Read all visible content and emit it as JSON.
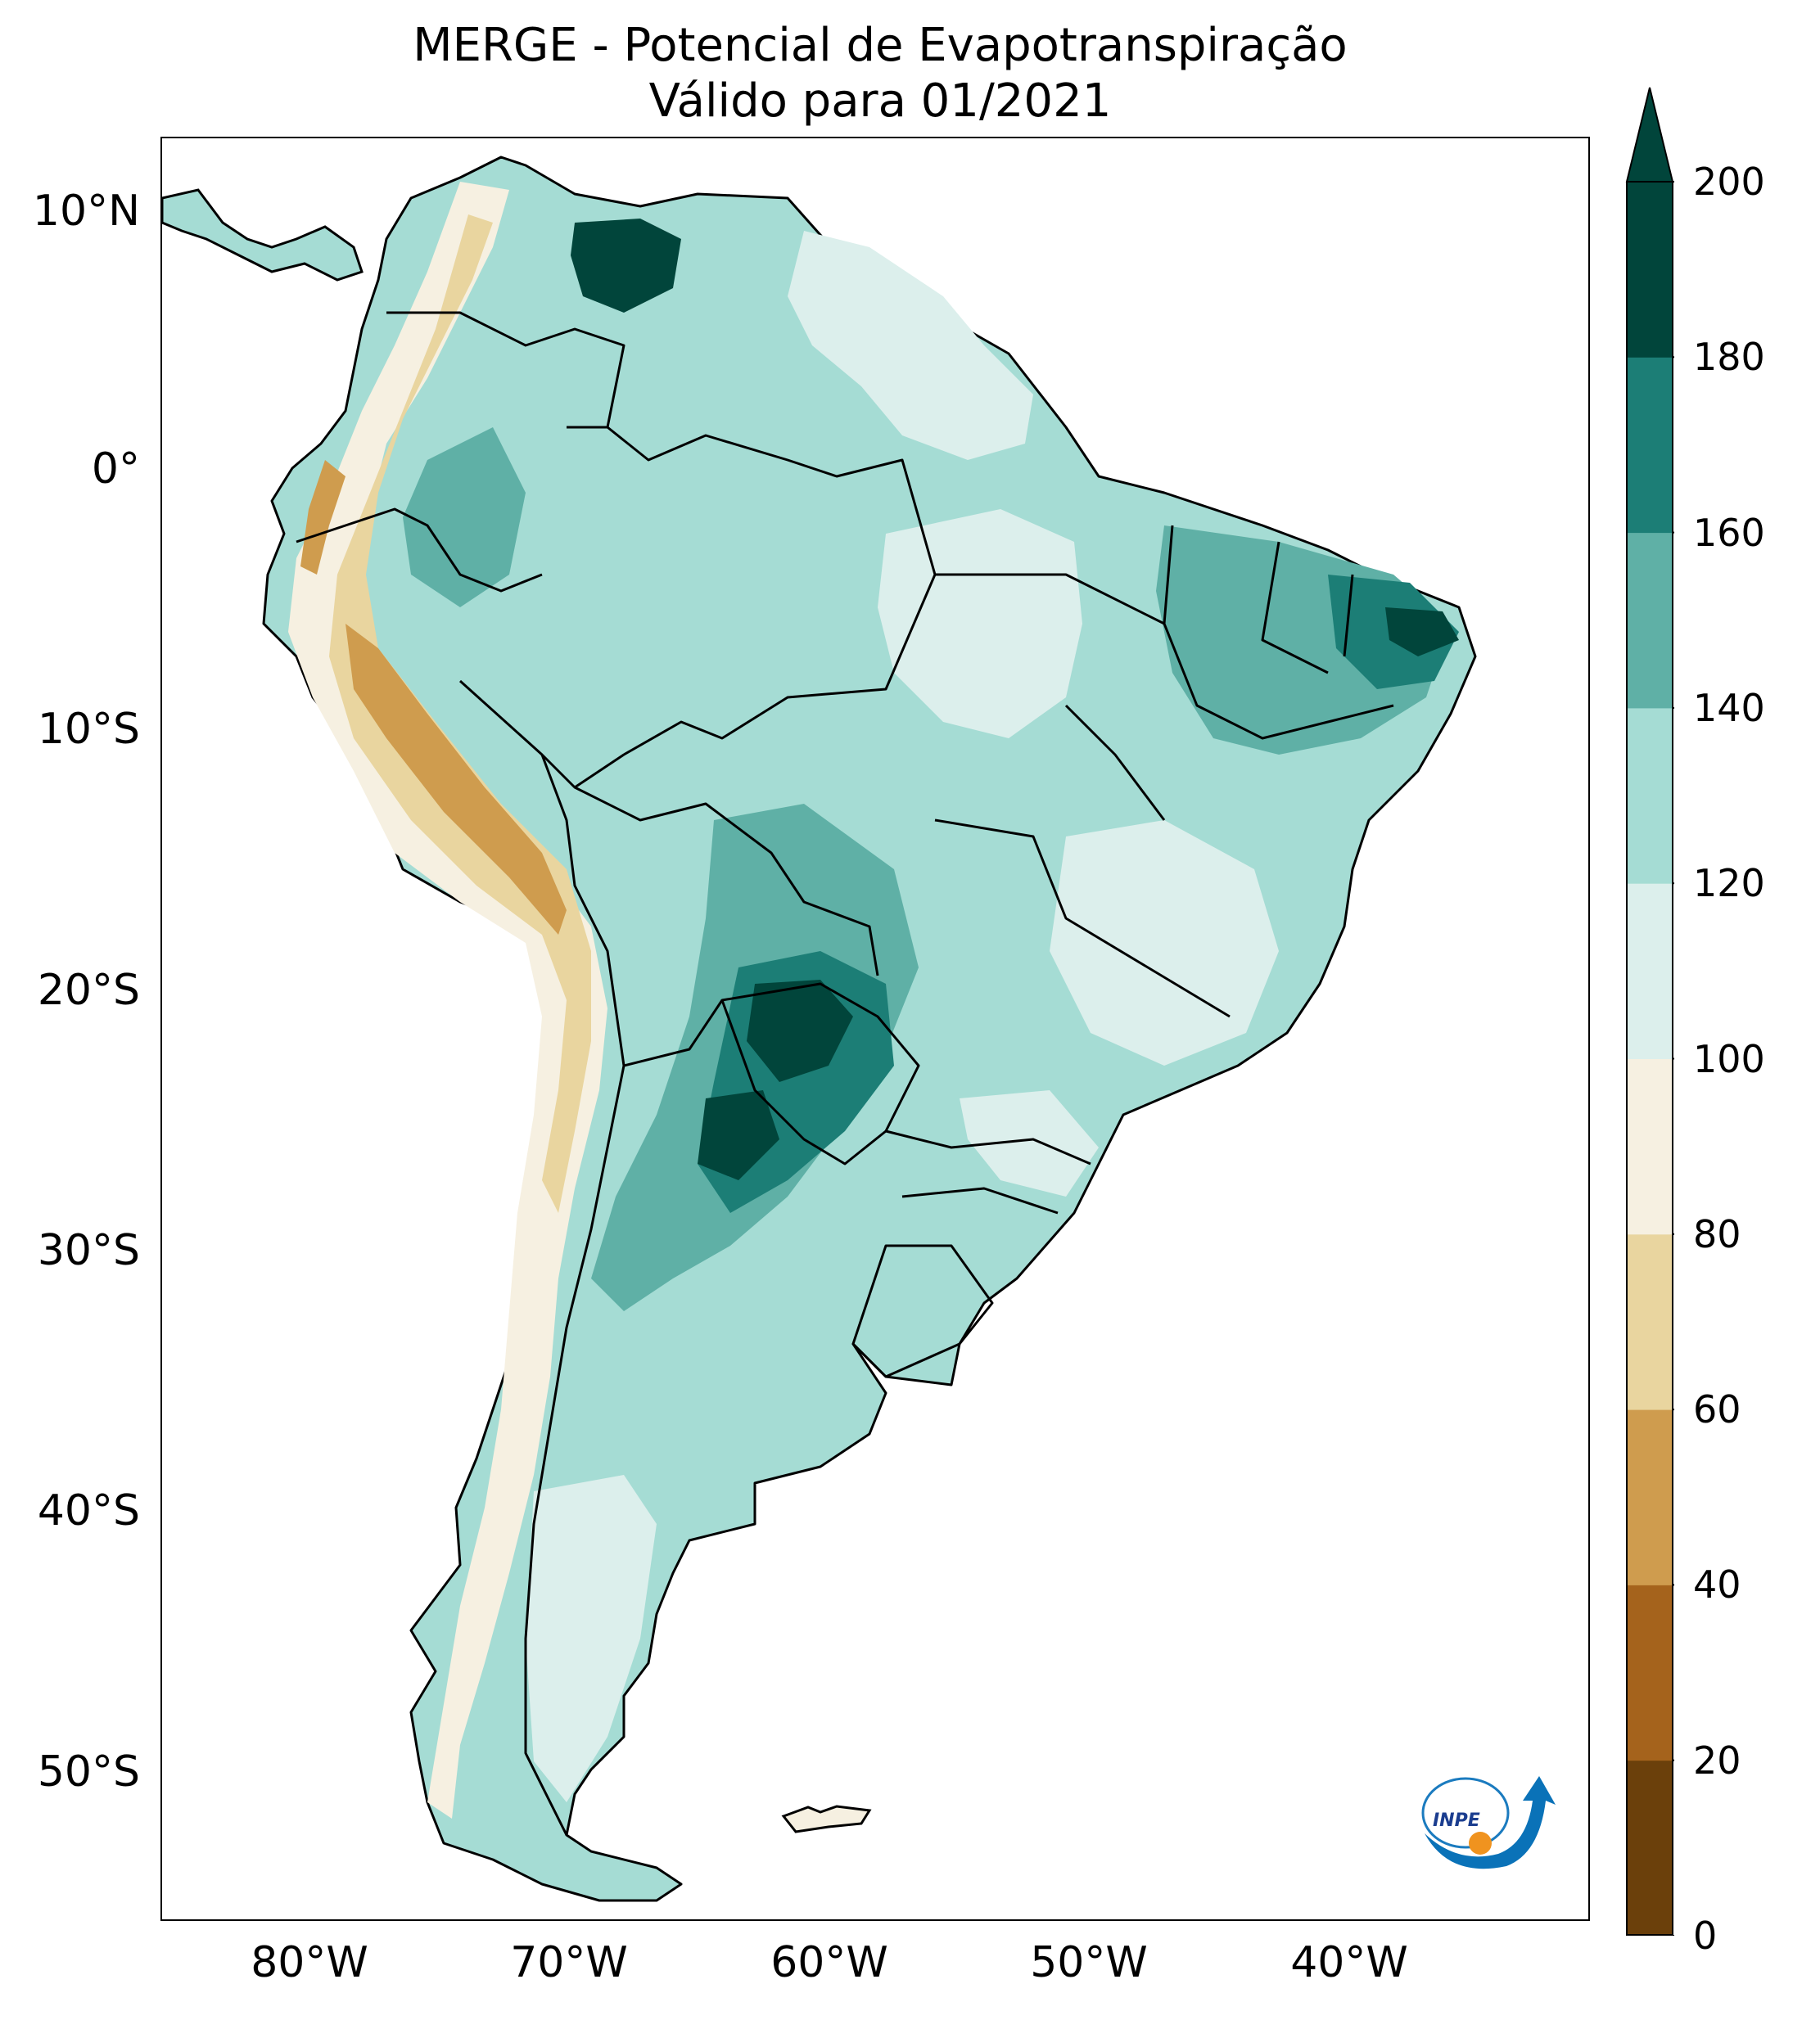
{
  "title": {
    "line1": "MERGE - Potencial de Evapotranspiração",
    "line2": "Válido para 01/2021"
  },
  "map": {
    "latitude_labels": [
      "10°N",
      "0°",
      "10°S",
      "20°S",
      "30°S",
      "40°S",
      "50°S"
    ],
    "longitude_labels": [
      "80°W",
      "70°W",
      "60°W",
      "50°W",
      "40°W"
    ]
  },
  "colorbar": {
    "ticks": [
      "0",
      "20",
      "40",
      "60",
      "80",
      "100",
      "120",
      "140",
      "160",
      "180",
      "200"
    ],
    "colors": [
      "#6b400b",
      "#a5631c",
      "#cf9c4e",
      "#e9d59f",
      "#f6f0e1",
      "#dcefec",
      "#a5dcd4",
      "#5fb0a6",
      "#1c7e76",
      "#01453b"
    ],
    "extend": "max"
  },
  "logo": {
    "text": "INPE"
  }
}
